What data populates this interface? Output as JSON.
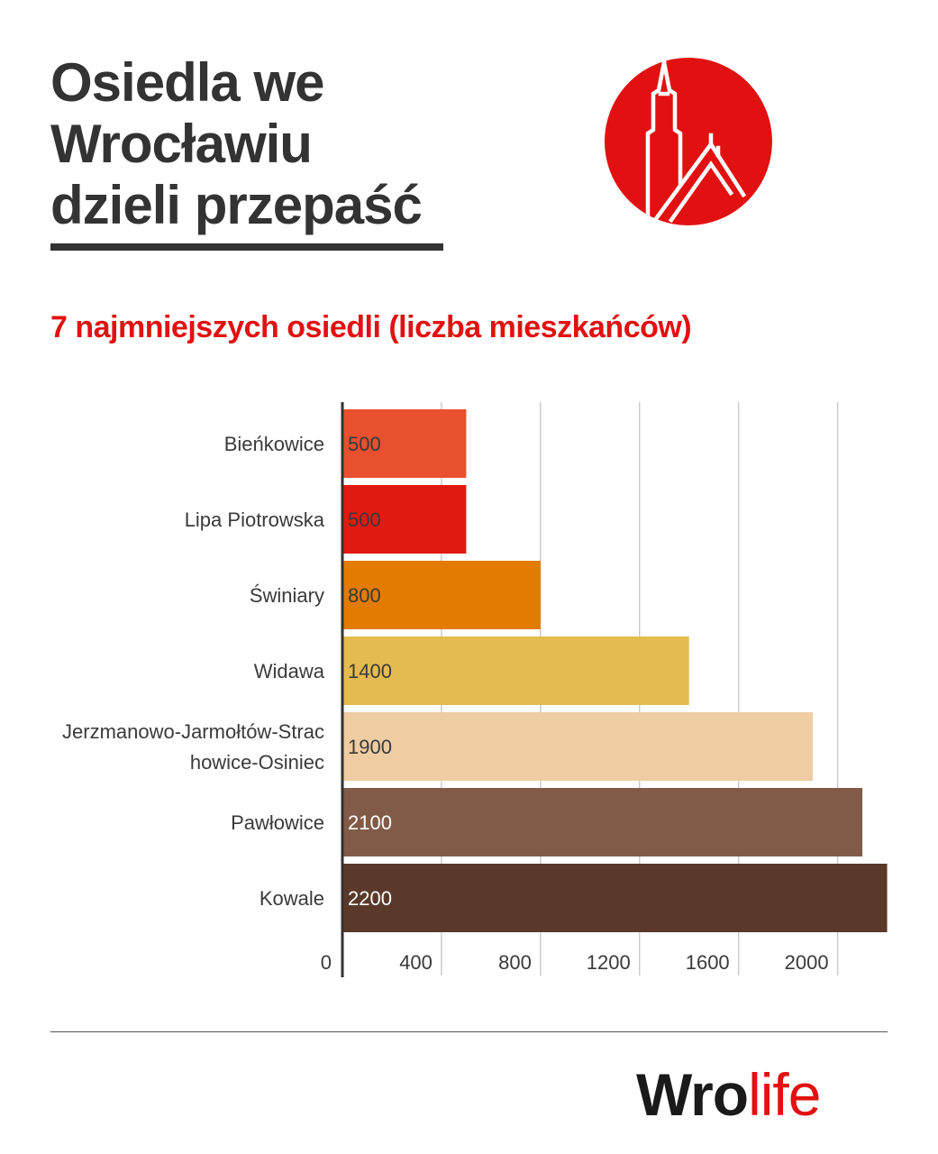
{
  "header": {
    "title": "Osiedla we Wrocławiu dzieli przepaść",
    "subtitle": "7 najmniejszych osiedli (liczba mieszkańców)"
  },
  "brand": {
    "part1": "Wro",
    "part2": "life",
    "accent": "#e21111",
    "icon": "church-tower-logo-icon"
  },
  "chart_data": {
    "type": "bar",
    "orientation": "horizontal",
    "categories": [
      "Bieńkowice",
      "Lipa Piotrowska",
      "Świniary",
      "Widawa",
      "Jerzmanowo-Jarmołtów-Strachowice-Osiniec",
      "Pawłowice",
      "Kowale"
    ],
    "category_lines": [
      [
        "Bieńkowice"
      ],
      [
        "Lipa Piotrowska"
      ],
      [
        "Świniary"
      ],
      [
        "Widawa"
      ],
      [
        "Jerzmanowo-Jarmołtów-Strac",
        "howice-Osiniec"
      ],
      [
        "Pawłowice"
      ],
      [
        "Kowale"
      ]
    ],
    "values": [
      500,
      500,
      800,
      1400,
      1900,
      2100,
      2200
    ],
    "data_labels": [
      "500",
      "500",
      "800",
      "1400",
      "1900",
      "2100",
      "2200"
    ],
    "colors": [
      "#e8502f",
      "#e2190e",
      "#e27b00",
      "#e4bb4f",
      "#eecda3",
      "#815b48",
      "#5a392b"
    ],
    "x_ticks": [
      0,
      400,
      800,
      1200,
      1600,
      2000
    ],
    "x_tick_labels": [
      "0",
      "400",
      "800",
      "1200",
      "1600",
      "2000"
    ],
    "xlim": [
      0,
      2200
    ],
    "grid": true,
    "legend": "none"
  }
}
